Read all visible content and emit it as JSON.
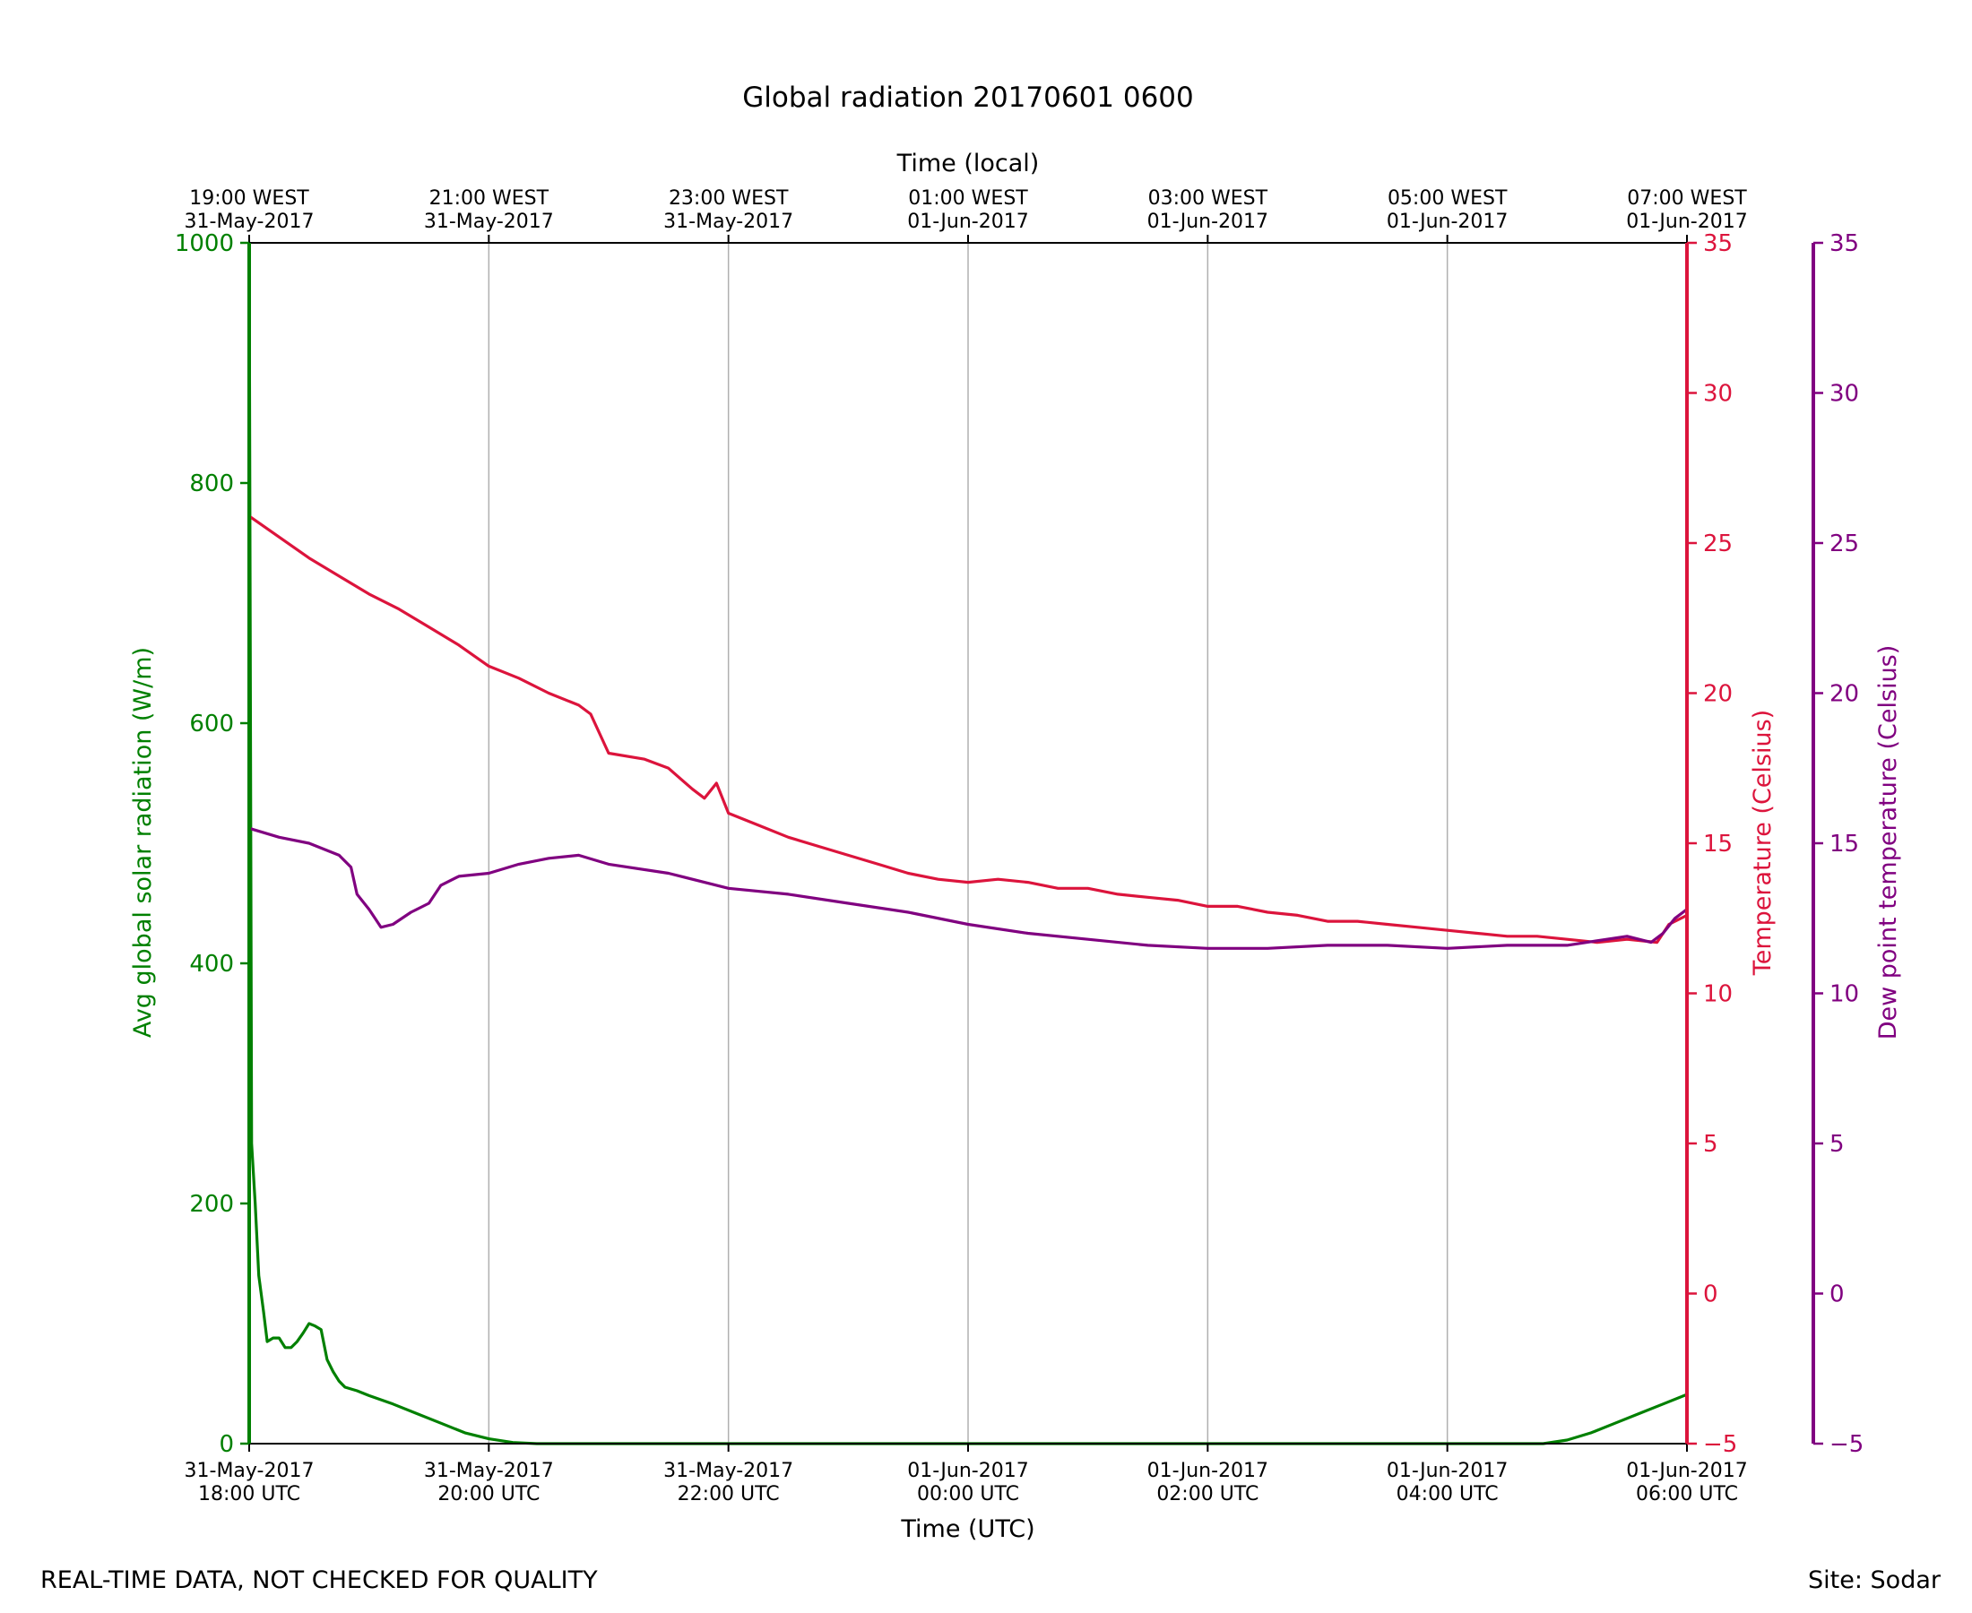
{
  "footer": {
    "disclaimer": "REAL-TIME DATA, NOT CHECKED FOR QUALITY",
    "site": "Site: Sodar"
  },
  "chart_data": {
    "type": "line",
    "title": "Global radiation 20170601 0600",
    "xlabel": "Time (UTC)",
    "xlabel_top": "Time (local)",
    "x_unit": "hours since 31-May-2017 18:00 UTC",
    "xlim": [
      0,
      12
    ],
    "grid": "vertical",
    "bottom_ticks": [
      {
        "x": 0,
        "line1": "31-May-2017",
        "line2": "18:00 UTC"
      },
      {
        "x": 2,
        "line1": "31-May-2017",
        "line2": "20:00 UTC"
      },
      {
        "x": 4,
        "line1": "31-May-2017",
        "line2": "22:00 UTC"
      },
      {
        "x": 6,
        "line1": "01-Jun-2017",
        "line2": "00:00 UTC"
      },
      {
        "x": 8,
        "line1": "01-Jun-2017",
        "line2": "02:00 UTC"
      },
      {
        "x": 10,
        "line1": "01-Jun-2017",
        "line2": "04:00 UTC"
      },
      {
        "x": 12,
        "line1": "01-Jun-2017",
        "line2": "06:00 UTC"
      }
    ],
    "top_ticks": [
      {
        "x": 0,
        "line1": "19:00 WEST",
        "line2": "31-May-2017"
      },
      {
        "x": 2,
        "line1": "21:00 WEST",
        "line2": "31-May-2017"
      },
      {
        "x": 4,
        "line1": "23:00 WEST",
        "line2": "31-May-2017"
      },
      {
        "x": 6,
        "line1": "01:00 WEST",
        "line2": "01-Jun-2017"
      },
      {
        "x": 8,
        "line1": "03:00 WEST",
        "line2": "01-Jun-2017"
      },
      {
        "x": 10,
        "line1": "05:00 WEST",
        "line2": "01-Jun-2017"
      },
      {
        "x": 12,
        "line1": "07:00 WEST",
        "line2": "01-Jun-2017"
      }
    ],
    "axes": {
      "left": {
        "label": "Avg global solar radiation (W/m)",
        "ylim": [
          0,
          1000
        ],
        "ticks": [
          0,
          200,
          400,
          600,
          800,
          1000
        ],
        "tick_labels": [
          "0",
          "200",
          "400",
          "600",
          "800",
          "1000"
        ],
        "color": "#008000"
      },
      "right1": {
        "label": "Temperature (Celsius)",
        "ylim": [
          -5,
          35
        ],
        "ticks": [
          -5,
          0,
          5,
          10,
          15,
          20,
          25,
          30,
          35
        ],
        "tick_labels": [
          "−5",
          "0",
          "5",
          "10",
          "15",
          "20",
          "25",
          "30",
          "35"
        ],
        "color": "#dc143c"
      },
      "right2": {
        "label": "Dew point temperature (Celsius)",
        "ylim": [
          -5,
          35
        ],
        "ticks": [
          -5,
          0,
          5,
          10,
          15,
          20,
          25,
          30,
          35
        ],
        "tick_labels": [
          "−5",
          "0",
          "5",
          "10",
          "15",
          "20",
          "25",
          "30",
          "35"
        ],
        "color": "#800080"
      }
    },
    "series": [
      {
        "name": "Avg global solar radiation",
        "axis": "left",
        "color": "#008000",
        "x": [
          0,
          0.02,
          0.05,
          0.08,
          0.12,
          0.15,
          0.2,
          0.25,
          0.3,
          0.35,
          0.4,
          0.45,
          0.5,
          0.55,
          0.6,
          0.65,
          0.7,
          0.75,
          0.8,
          0.9,
          1.0,
          1.2,
          1.4,
          1.6,
          1.8,
          2.0,
          2.2,
          2.4,
          2.6,
          3.0,
          4.0,
          5.0,
          6.0,
          7.0,
          8.0,
          9.0,
          10.0,
          10.8,
          11.0,
          11.2,
          11.4,
          11.6,
          11.8,
          12.0
        ],
        "values": [
          1000,
          250,
          200,
          140,
          110,
          85,
          88,
          88,
          80,
          80,
          85,
          92,
          100,
          98,
          95,
          70,
          60,
          52,
          47,
          44,
          40,
          33,
          25,
          17,
          9,
          4,
          1,
          0,
          0,
          0,
          0,
          0,
          0,
          0,
          0,
          0,
          0,
          0,
          3,
          9,
          17,
          25,
          33,
          41
        ]
      },
      {
        "name": "Temperature",
        "axis": "right1",
        "color": "#dc143c",
        "x": [
          0,
          0.25,
          0.5,
          0.75,
          1.0,
          1.25,
          1.5,
          1.75,
          2.0,
          2.25,
          2.5,
          2.75,
          2.85,
          3.0,
          3.3,
          3.5,
          3.7,
          3.8,
          3.9,
          4.0,
          4.25,
          4.5,
          4.75,
          5.0,
          5.25,
          5.5,
          5.75,
          6.0,
          6.25,
          6.5,
          6.75,
          7.0,
          7.25,
          7.5,
          7.75,
          8.0,
          8.25,
          8.5,
          8.75,
          9.0,
          9.25,
          9.5,
          9.75,
          10.0,
          10.25,
          10.5,
          10.75,
          11.0,
          11.25,
          11.5,
          11.75,
          11.85,
          12.0
        ],
        "values": [
          25.9,
          25.2,
          24.5,
          23.9,
          23.3,
          22.8,
          22.2,
          21.6,
          20.9,
          20.5,
          20.0,
          19.6,
          19.3,
          18.0,
          17.8,
          17.5,
          16.8,
          16.5,
          17.0,
          16.0,
          15.6,
          15.2,
          14.9,
          14.6,
          14.3,
          14.0,
          13.8,
          13.7,
          13.8,
          13.7,
          13.5,
          13.5,
          13.3,
          13.2,
          13.1,
          12.9,
          12.9,
          12.7,
          12.6,
          12.4,
          12.4,
          12.3,
          12.2,
          12.1,
          12.0,
          11.9,
          11.9,
          11.8,
          11.7,
          11.8,
          11.7,
          12.3,
          12.6
        ]
      },
      {
        "name": "Dew point temperature",
        "axis": "right2",
        "color": "#800080",
        "x": [
          0,
          0.25,
          0.5,
          0.75,
          0.85,
          0.9,
          1.0,
          1.05,
          1.1,
          1.2,
          1.35,
          1.5,
          1.6,
          1.75,
          2.0,
          2.25,
          2.5,
          2.75,
          3.0,
          3.5,
          4.0,
          4.5,
          5.0,
          5.5,
          6.0,
          6.5,
          7.0,
          7.5,
          8.0,
          8.5,
          9.0,
          9.5,
          10.0,
          10.5,
          11.0,
          11.5,
          11.7,
          11.8,
          11.9,
          12.0
        ],
        "values": [
          15.5,
          15.2,
          15.0,
          14.6,
          14.2,
          13.3,
          12.8,
          12.5,
          12.2,
          12.3,
          12.7,
          13.0,
          13.6,
          13.9,
          14.0,
          14.3,
          14.5,
          14.6,
          14.3,
          14.0,
          13.5,
          13.3,
          13.0,
          12.7,
          12.3,
          12.0,
          11.8,
          11.6,
          11.5,
          11.5,
          11.6,
          11.6,
          11.5,
          11.6,
          11.6,
          11.9,
          11.7,
          12.0,
          12.5,
          12.8
        ]
      }
    ]
  }
}
